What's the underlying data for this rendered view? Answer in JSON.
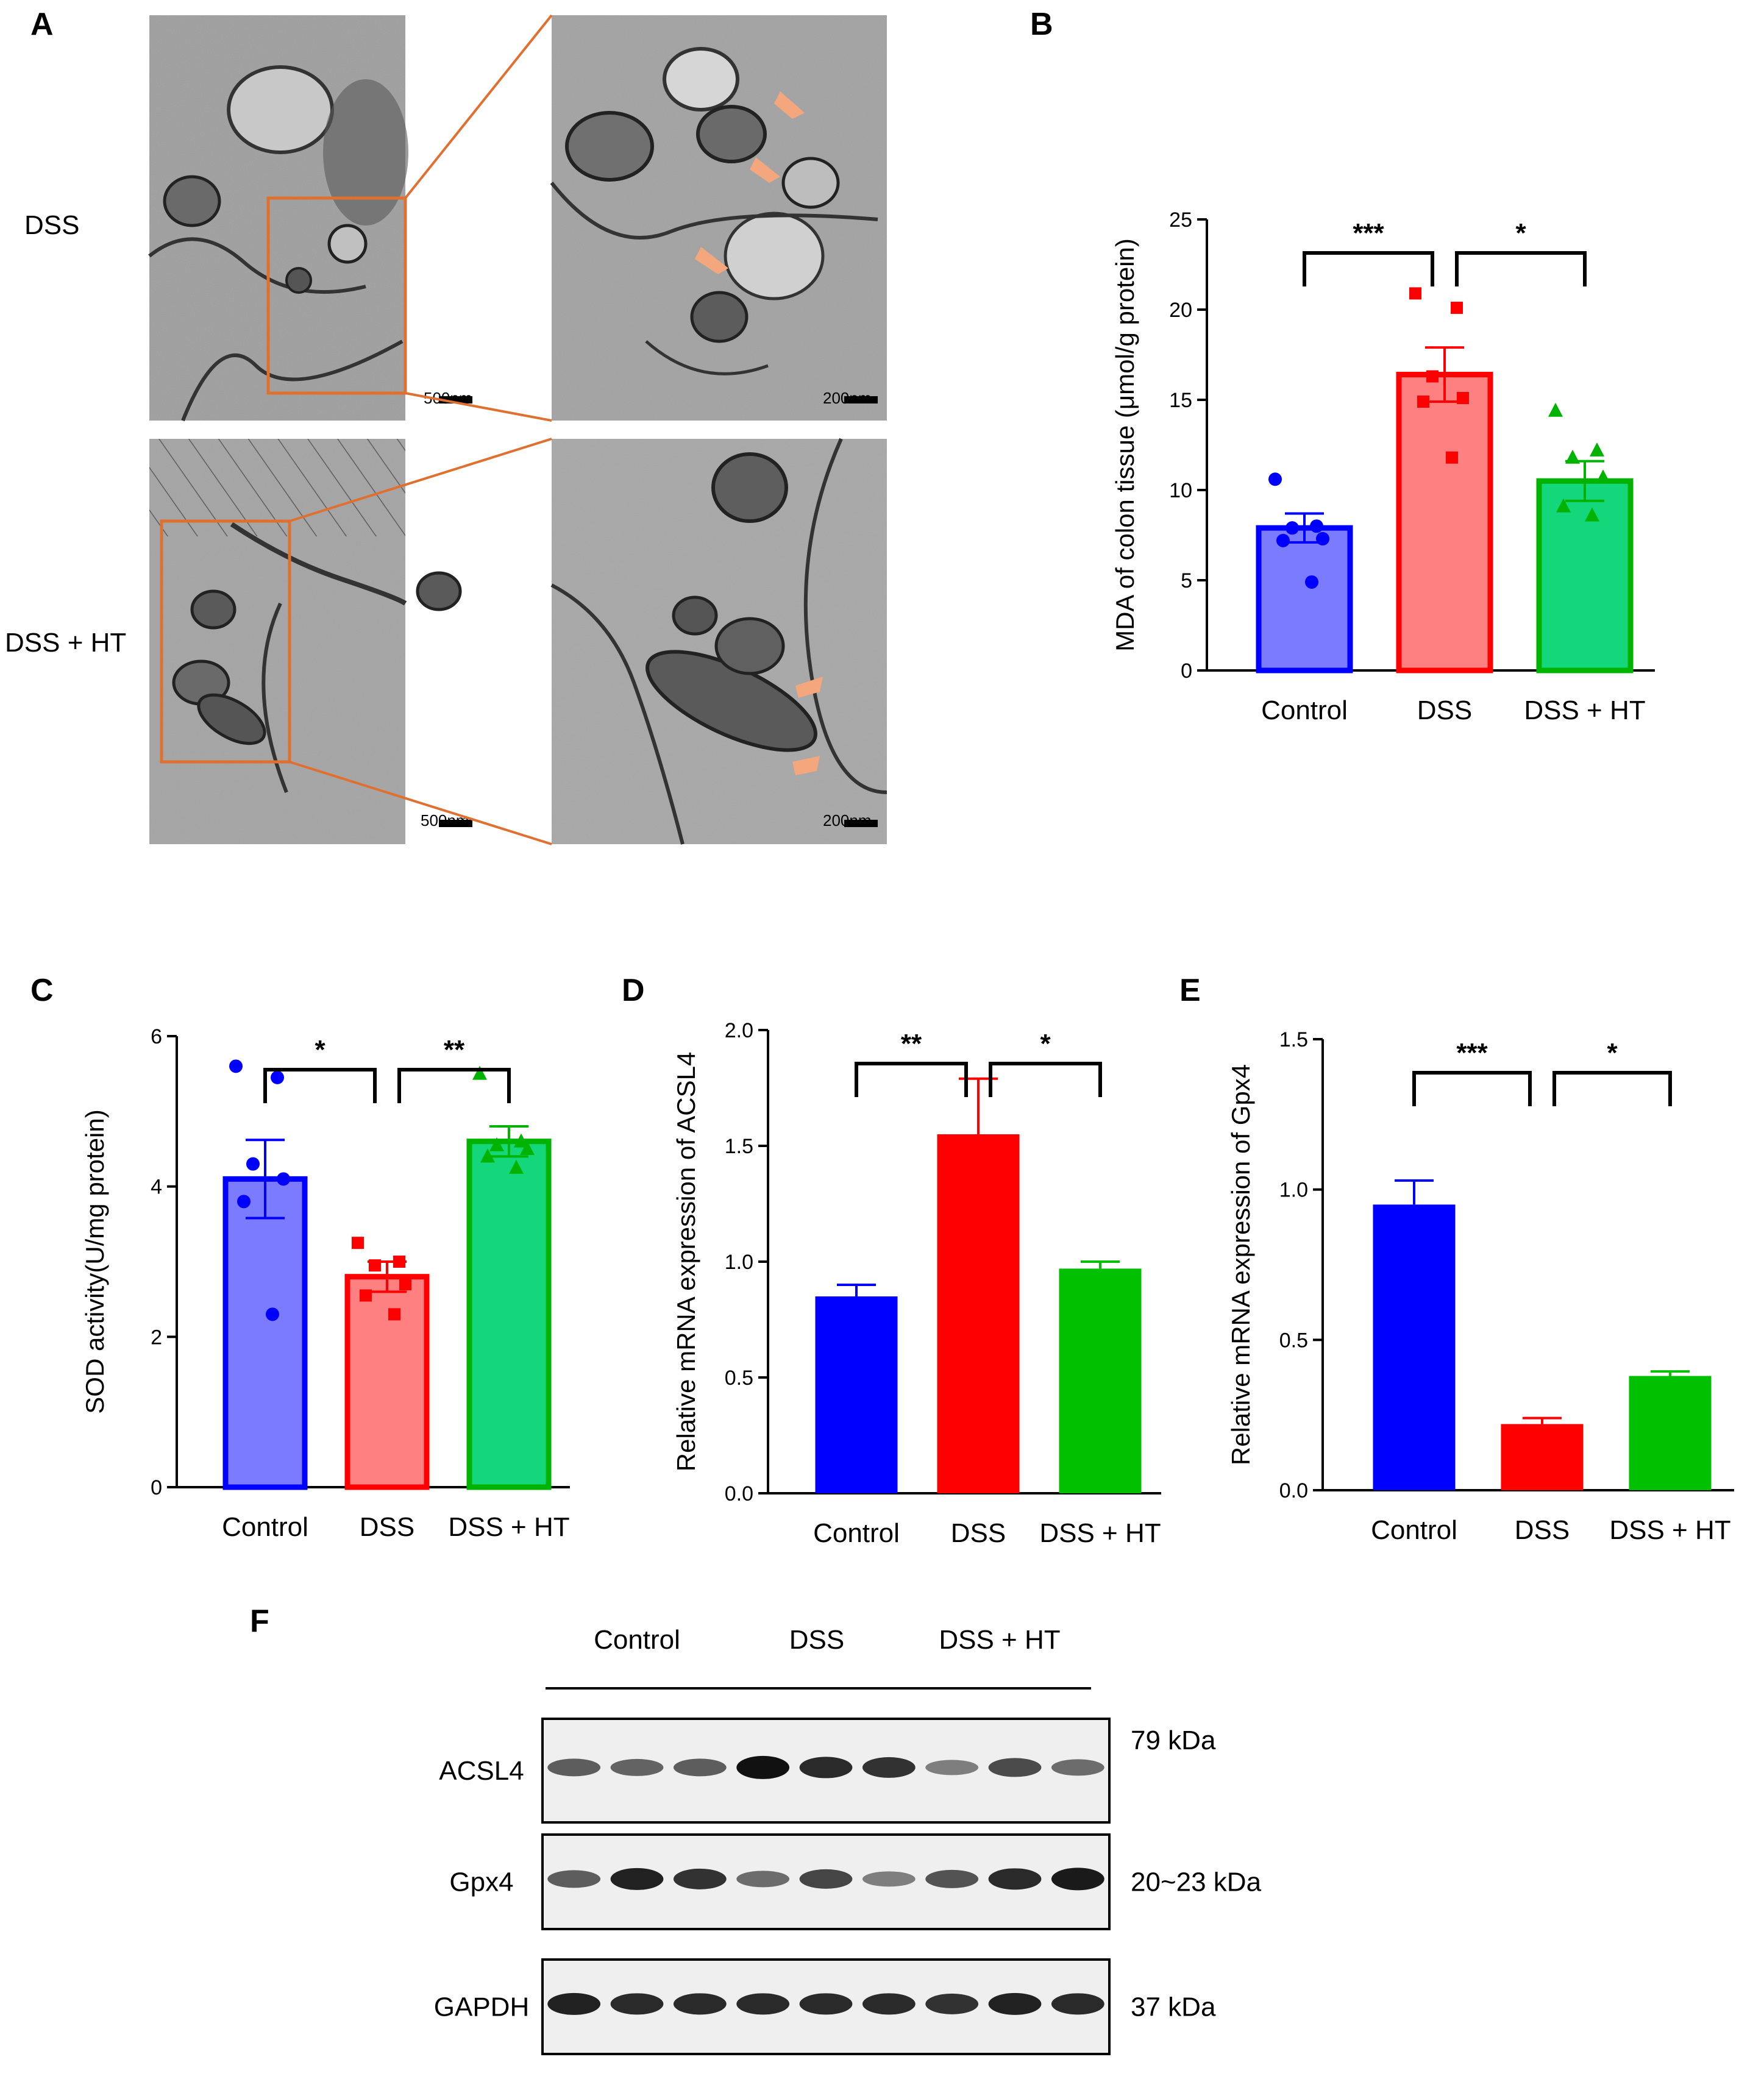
{
  "figure": {
    "panels": {
      "A": "A",
      "B": "B",
      "C": "C",
      "D": "D",
      "E": "E",
      "F": "F"
    },
    "colors": {
      "control_fill": "#7b7bff",
      "control_stroke": "#0000ff",
      "dss_fill": "#ff8080",
      "dss_stroke": "#ff0000",
      "ht_fill": "#14d67a",
      "ht_stroke": "#00b300",
      "solid_blue": "#0000ff",
      "solid_red": "#ff0000",
      "solid_green": "#00c000",
      "arrow": "#f4a77c",
      "box": "#e07030"
    }
  },
  "panel_a": {
    "row_labels": [
      "DSS",
      "DSS + HT"
    ],
    "scale_bars": {
      "low": "500nm",
      "high": "200nm"
    },
    "image_description": "TEM micrographs of colon epithelial cells, boxed regions enlarged with arrows marking mitochondria"
  },
  "chart_data": [
    {
      "id": "B",
      "type": "bar",
      "categories": [
        "Control",
        "DSS",
        "DSS + HT"
      ],
      "values": [
        7.9,
        16.4,
        10.5
      ],
      "errors": [
        0.8,
        1.5,
        1.1
      ],
      "points": [
        [
          10.6,
          8.0,
          7.9,
          7.3,
          7.2,
          4.9
        ],
        [
          20.9,
          20.1,
          16.3,
          15.1,
          14.9,
          11.8
        ],
        [
          14.4,
          12.2,
          11.8,
          10.7,
          9.1,
          8.6
        ]
      ],
      "markers": [
        "circle",
        "square",
        "triangle"
      ],
      "ylabel": "MDA of colon tissue (μmol/g protein)",
      "ylim": [
        0,
        25
      ],
      "yticks": [
        "0",
        "5",
        "10",
        "15",
        "20",
        "25"
      ],
      "significance": [
        {
          "pair": [
            0,
            1
          ],
          "label": "***"
        },
        {
          "pair": [
            1,
            2
          ],
          "label": "*"
        }
      ]
    },
    {
      "id": "C",
      "type": "bar",
      "categories": [
        "Control",
        "DSS",
        "DSS + HT"
      ],
      "values": [
        4.1,
        2.8,
        4.6
      ],
      "errors": [
        0.52,
        0.2,
        0.2
      ],
      "points": [
        [
          5.6,
          5.45,
          4.3,
          4.1,
          3.8,
          2.3
        ],
        [
          3.25,
          3.0,
          2.95,
          2.7,
          2.55,
          2.3
        ],
        [
          5.5,
          4.6,
          4.55,
          4.5,
          4.4,
          4.25
        ]
      ],
      "markers": [
        "circle",
        "square",
        "triangle"
      ],
      "ylabel": "SOD activity(U/mg protein)",
      "ylim": [
        0,
        6
      ],
      "yticks": [
        "0",
        "2",
        "4",
        "6"
      ],
      "significance": [
        {
          "pair": [
            0,
            1
          ],
          "label": "*"
        },
        {
          "pair": [
            1,
            2
          ],
          "label": "**"
        }
      ]
    },
    {
      "id": "D",
      "type": "bar",
      "categories": [
        "Control",
        "DSS",
        "DSS + HT"
      ],
      "values": [
        0.85,
        1.55,
        0.97
      ],
      "errors": [
        0.05,
        0.24,
        0.03
      ],
      "ylabel": "Relative mRNA expression of ACSL4",
      "ylim": [
        0,
        2.0
      ],
      "yticks": [
        "0.0",
        "0.5",
        "1.0",
        "1.5",
        "2.0"
      ],
      "significance": [
        {
          "pair": [
            0,
            1
          ],
          "label": "**"
        },
        {
          "pair": [
            1,
            2
          ],
          "label": "*"
        }
      ]
    },
    {
      "id": "E",
      "type": "bar",
      "categories": [
        "Control",
        "DSS",
        "DSS + HT"
      ],
      "values": [
        0.95,
        0.22,
        0.38
      ],
      "errors": [
        0.08,
        0.02,
        0.015
      ],
      "ylabel": "Relative mRNA expression of Gpx4",
      "ylim": [
        0,
        1.5
      ],
      "yticks": [
        "0.0",
        "0.5",
        "1.0",
        "1.5"
      ],
      "significance": [
        {
          "pair": [
            0,
            1
          ],
          "label": "***"
        },
        {
          "pair": [
            1,
            2
          ],
          "label": "*"
        }
      ]
    }
  ],
  "blot": {
    "groups": [
      "Control",
      "DSS",
      "DSS + HT"
    ],
    "rows": [
      {
        "label": "ACSL4",
        "kda": "79 kDa",
        "intensity": [
          0.55,
          0.5,
          0.55,
          1.0,
          0.85,
          0.8,
          0.35,
          0.65,
          0.45
        ]
      },
      {
        "label": "Gpx4",
        "kda": "20~23 kDa",
        "intensity": [
          0.55,
          0.9,
          0.8,
          0.45,
          0.7,
          0.35,
          0.6,
          0.85,
          0.95
        ]
      },
      {
        "label": "GAPDH",
        "kda": "37 kDa",
        "intensity": [
          0.9,
          0.85,
          0.85,
          0.85,
          0.85,
          0.85,
          0.8,
          0.9,
          0.85
        ]
      }
    ]
  }
}
